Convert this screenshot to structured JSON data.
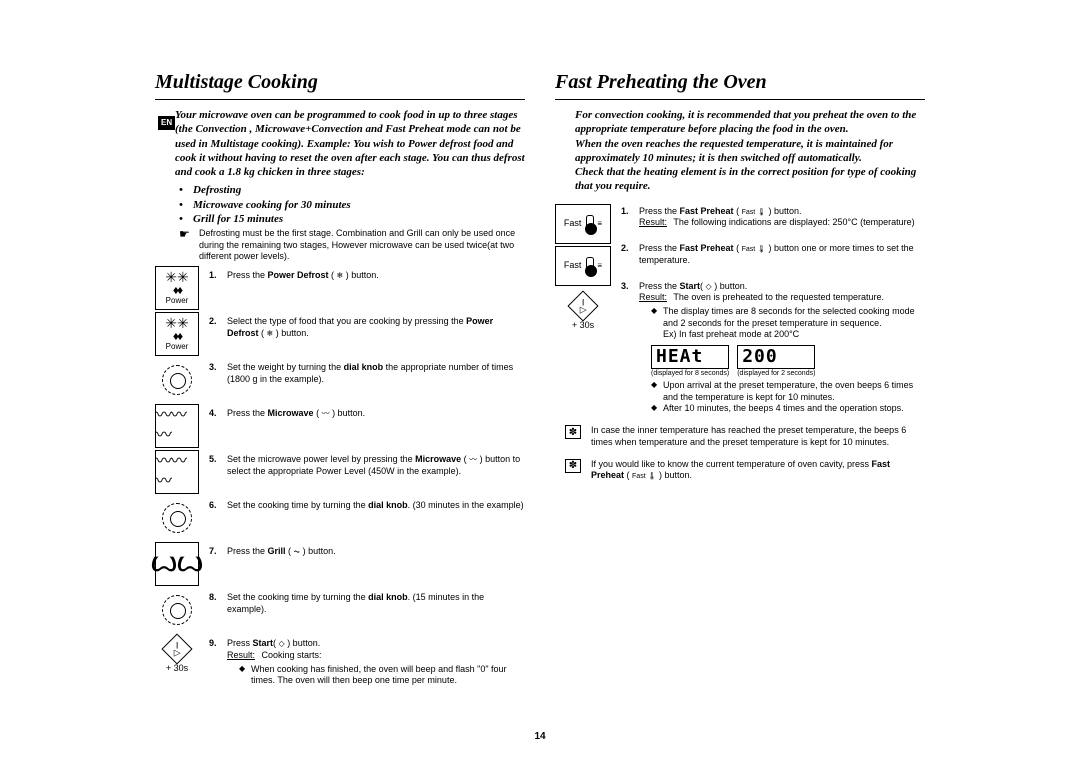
{
  "page_number": "14",
  "lang_tag": "EN",
  "left": {
    "title": "Multistage Cooking",
    "intro": "Your microwave oven can be programmed to cook food in up to three stages (the Convection , Microwave+Convection and Fast Preheat mode can not be used in Multistage cooking). Example: You wish to Power defrost food and cook it without having to reset the oven after each stage. You can thus defrost and cook a 1.8 kg chicken in three stages:",
    "bullets": [
      "Defrosting",
      "Microwave cooking for 30 minutes",
      "Grill for 15 minutes"
    ],
    "note": "Defrosting must be the first stage. Combination and Grill can only be used once during the remaining two stages, However microwave can be used twice(at two different power levels).",
    "icons": {
      "power_label": "Power",
      "plus30": "+ 30s"
    },
    "steps": [
      {
        "n": "1.",
        "html": "Press the <b>Power Defrost</b> ( <span class='inline-icon'>❄</span> ) button."
      },
      {
        "n": "2.",
        "html": "Select the type of food that you are cooking by pressing the <b>Power Defrost</b> ( <span class='inline-icon'>❄</span> ) button."
      },
      {
        "n": "3.",
        "html": "Set the weight by turning the <b>dial knob</b> the appropriate number of times (1800 g in the example)."
      },
      {
        "n": "4.",
        "html": "Press the <b>Microwave</b> ( <span class='inline-icon'>〰</span> ) button."
      },
      {
        "n": "5.",
        "html": "Set the microwave power level by pressing the <b>Microwave</b> ( <span class='inline-icon'>〰</span> ) button to select the appropriate Power Level (450W in the example)."
      },
      {
        "n": "6.",
        "html": "Set the cooking time by turning the <b>dial knob</b>.  (30 minutes in the example)"
      },
      {
        "n": "7.",
        "html": "Press the <b>Grill</b> ( <span class='inline-icon'>⏦</span> ) button."
      },
      {
        "n": "8.",
        "html": "Set the cooking time by turning the <b>dial knob</b>. (15 minutes in the example)."
      },
      {
        "n": "9.",
        "html": "Press <b>Start</b>( <span class='inline-icon'>◇</span> ) button.",
        "result_label": "Result:",
        "result_text": "Cooking starts:",
        "sub": [
          "When cooking has finished, the oven will beep and flash \"0\" four times. The oven will then beep one time per minute."
        ]
      }
    ]
  },
  "right": {
    "title": "Fast Preheating the Oven",
    "intro": "For convection cooking, it is recommended that you preheat the oven to the appropriate temperature before placing the food in the oven.\nWhen the oven reaches the requested temperature, it is maintained for approximately 10 minutes; it is then switched off automatically.\nCheck that the heating element is in the correct position for  type of cooking that you require.",
    "icons": {
      "fast_label": "Fast",
      "plus30": "+ 30s"
    },
    "steps": [
      {
        "n": "1.",
        "html": "Press the <b>Fast Preheat</b> ( <span class='tiny'>Fast 🌡</span> ) button.",
        "result_label": "Result:",
        "result_text": "The following indications are displayed: 250°C  (temperature)"
      },
      {
        "n": "2.",
        "html": "Press the <b>Fast Preheat</b> ( <span class='tiny'>Fast 🌡</span> ) button one or more times to set the temperature."
      },
      {
        "n": "3.",
        "html": "Press the <b>Start</b>( <span class='inline-icon'>◇</span> ) button.",
        "result_label": "Result:",
        "result_text": "The oven is preheated to the requested temperature.",
        "sub_a": "The display times are 8 seconds for the selected cooking mode and 2 seconds for the preset temperature in sequence.\nEx) In fast preheat mode at 200°C",
        "disp1": "HEAt",
        "disp1_cap": "(displayed for 8 seconds)",
        "disp2": "200",
        "disp2_cap": "(displayed for 2 seconds)",
        "sub_b": "Upon arrival at the preset temperature, the oven beeps 6 times and the temperature is kept for 10 minutes.",
        "sub_c": "After 10 minutes, the beeps 4 times and the operation stops."
      }
    ],
    "notes": [
      "In case the inner temperature has reached the preset temperature, the beeps 6 times when temperature and the preset temperature is kept for 10 minutes.",
      "If you would like to know the current temperature of oven cavity, press <b>Fast Preheat</b> ( <span class='tiny'>Fast 🌡</span> ) button."
    ]
  }
}
